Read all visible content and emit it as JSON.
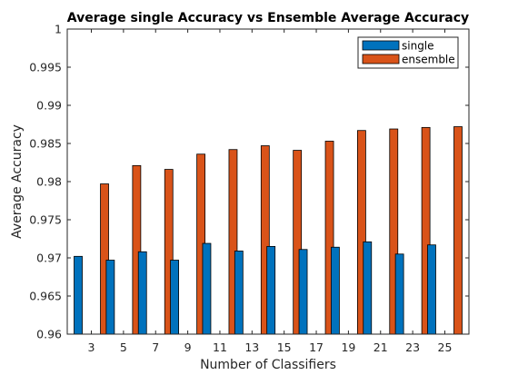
{
  "chart_data": {
    "type": "bar",
    "title": "Average single Accuracy vs Ensemble  Average Accuracy",
    "xlabel": "Number of Classifiers",
    "ylabel": "Average Accuracy",
    "categories": [
      "3",
      "5",
      "7",
      "9",
      "11",
      "13",
      "15",
      "17",
      "19",
      "21",
      "23",
      "25"
    ],
    "series": [
      {
        "name": "single",
        "color": "#0072BD",
        "values": [
          0.9702,
          0.9697,
          0.9708,
          0.9697,
          0.9719,
          0.9709,
          0.9715,
          0.9711,
          0.9714,
          0.9721,
          0.9705,
          0.9717
        ]
      },
      {
        "name": "ensemble",
        "color": "#D95319",
        "values": [
          0.9797,
          0.9821,
          0.9816,
          0.9836,
          0.9842,
          0.9847,
          0.9841,
          0.9853,
          0.9867,
          0.9869,
          0.9871,
          0.9872
        ]
      }
    ],
    "ylim": [
      0.96,
      1.0
    ],
    "yticks": [
      "0.96",
      "0.965",
      "0.97",
      "0.975",
      "0.98",
      "0.985",
      "0.99",
      "0.995",
      "1"
    ],
    "legend_position": "top-right",
    "grid": false
  }
}
